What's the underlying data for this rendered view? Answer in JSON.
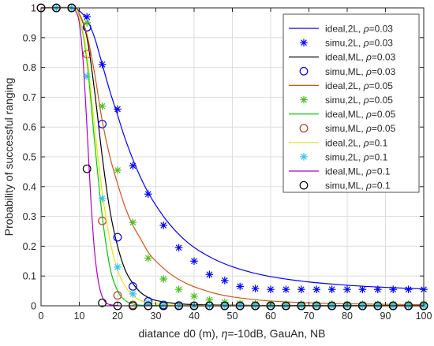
{
  "chart_data": {
    "type": "line",
    "title": "",
    "xlabel_prefix": "diatance d0 (m),   ",
    "xlabel_eta": "η",
    "xlabel_suffix": "=-10dB, GauAn, NB",
    "ylabel": "Probability of successful ranging",
    "xlim": [
      0,
      100
    ],
    "ylim": [
      0,
      1
    ],
    "grid": true,
    "legend_position": "top-right",
    "xticks": [
      0,
      10,
      20,
      30,
      40,
      50,
      60,
      70,
      80,
      90,
      100
    ],
    "yticks": [
      0,
      0.1,
      0.2,
      0.3,
      0.4,
      0.5,
      0.6,
      0.7,
      0.8,
      0.9,
      1
    ],
    "xtick_labels": [
      "0",
      "10",
      "20",
      "30",
      "40",
      "50",
      "60",
      "70",
      "80",
      "90",
      "100"
    ],
    "ytick_labels": [
      "0",
      "0.1",
      "0.2",
      "0.3",
      "0.4",
      "0.5",
      "0.6",
      "0.7",
      "0.8",
      "0.9",
      "1"
    ],
    "series": [
      {
        "name": "ideal,2L, ρ=0.03",
        "label_text": "ideal,2L, ",
        "rho": "0.03",
        "kind": "line",
        "color": "#0000ff",
        "x": [
          0,
          8,
          10,
          12,
          14,
          16,
          18,
          20,
          22,
          25,
          28,
          32,
          36,
          40,
          45,
          50,
          55,
          60,
          65,
          70,
          75,
          80,
          85,
          90,
          95,
          100
        ],
        "y": [
          1,
          1,
          0.99,
          0.96,
          0.9,
          0.81,
          0.72,
          0.64,
          0.56,
          0.46,
          0.38,
          0.3,
          0.24,
          0.196,
          0.158,
          0.131,
          0.112,
          0.098,
          0.088,
          0.08,
          0.074,
          0.069,
          0.065,
          0.062,
          0.059,
          0.057
        ]
      },
      {
        "name": "simu,2L, ρ=0.03",
        "label_text": "simu,2L, ",
        "rho": "0.03",
        "kind": "star",
        "color": "#0000ff",
        "x": [
          12,
          16,
          20,
          24,
          28,
          32,
          36,
          40,
          44,
          48,
          52,
          56,
          60,
          64,
          68,
          72,
          76,
          80,
          84,
          88,
          92,
          96,
          100
        ],
        "y": [
          0.97,
          0.81,
          0.66,
          0.47,
          0.375,
          0.27,
          0.195,
          0.15,
          0.105,
          0.085,
          0.065,
          0.058,
          0.055,
          0.055,
          0.055,
          0.055,
          0.055,
          0.055,
          0.055,
          0.055,
          0.055,
          0.055,
          0.055
        ]
      },
      {
        "name": "ideal,ML, ρ=0.03",
        "label_text": "ideal,ML, ",
        "rho": "0.03",
        "kind": "line",
        "color": "#000000",
        "x": [
          0,
          8,
          10,
          12,
          14,
          16,
          18,
          20,
          22,
          24,
          26,
          28,
          30,
          35,
          40,
          50,
          60,
          80,
          100
        ],
        "y": [
          1,
          1,
          0.98,
          0.9,
          0.72,
          0.5,
          0.32,
          0.2,
          0.12,
          0.075,
          0.045,
          0.028,
          0.018,
          0.008,
          0.004,
          0.002,
          0.001,
          0.001,
          0.001
        ]
      },
      {
        "name": "simu,ML, ρ=0.03",
        "label_text": "simu,ML, ",
        "rho": "0.03",
        "kind": "circle",
        "color": "#0000ff",
        "x": [
          0,
          4,
          8,
          12,
          16,
          20,
          24,
          28,
          32,
          36,
          40,
          44,
          48,
          52,
          56,
          60,
          64,
          68,
          72,
          76,
          80,
          84,
          88,
          92,
          96,
          100
        ],
        "y": [
          1,
          1,
          1,
          0.935,
          0.61,
          0.23,
          0.065,
          0.015,
          0.003,
          0.001,
          0,
          0,
          0,
          0,
          0,
          0,
          0,
          0,
          0,
          0,
          0,
          0,
          0,
          0,
          0,
          0
        ]
      },
      {
        "name": "ideal,2L, ρ=0.05",
        "label_text": "ideal,2L, ",
        "rho": "0.05",
        "kind": "line",
        "color": "#d95319",
        "x": [
          0,
          8,
          10,
          12,
          14,
          16,
          18,
          20,
          22,
          24,
          26,
          28,
          30,
          34,
          38,
          42,
          46,
          50,
          55,
          60,
          70,
          80,
          90,
          100
        ],
        "y": [
          1,
          1,
          0.98,
          0.91,
          0.78,
          0.62,
          0.5,
          0.41,
          0.33,
          0.27,
          0.225,
          0.18,
          0.15,
          0.105,
          0.075,
          0.055,
          0.04,
          0.03,
          0.022,
          0.016,
          0.01,
          0.007,
          0.005,
          0.004
        ]
      },
      {
        "name": "simu,2L, ρ=0.05",
        "label_text": "simu,2L, ",
        "rho": "0.05",
        "kind": "star",
        "color": "#4dbd21",
        "x": [
          4,
          8,
          12,
          16,
          20,
          24,
          28,
          32,
          36,
          40,
          44,
          48,
          52,
          56,
          60,
          64,
          68,
          72,
          76,
          80,
          84,
          88,
          92,
          96,
          100
        ],
        "y": [
          1,
          1,
          0.95,
          0.67,
          0.455,
          0.28,
          0.16,
          0.09,
          0.055,
          0.032,
          0.02,
          0.012,
          0.008,
          0.006,
          0.005,
          0.005,
          0.005,
          0.005,
          0.005,
          0.005,
          0.005,
          0.005,
          0.005,
          0.005,
          0.005
        ]
      },
      {
        "name": "ideal,ML, ρ=0.05",
        "label_text": "ideal,ML, ",
        "rho": "0.05",
        "kind": "line",
        "color": "#00cc00",
        "x": [
          0,
          8,
          10,
          12,
          14,
          16,
          18,
          20,
          22,
          24,
          26,
          30,
          40,
          60,
          100
        ],
        "y": [
          1,
          1,
          0.97,
          0.82,
          0.55,
          0.3,
          0.13,
          0.05,
          0.018,
          0.006,
          0.002,
          0.001,
          0,
          0,
          0
        ]
      },
      {
        "name": "simu,ML, ρ=0.05",
        "label_text": "simu,ML, ",
        "rho": "0.05",
        "kind": "circle",
        "color": "#c0392b",
        "x": [
          0,
          4,
          8,
          12,
          16,
          20,
          24,
          28,
          32,
          36,
          40,
          44,
          48,
          52,
          56,
          60,
          64,
          68,
          72,
          76,
          80,
          84,
          88,
          92,
          96,
          100
        ],
        "y": [
          1,
          1,
          1,
          0.845,
          0.285,
          0.035,
          0.003,
          0,
          0,
          0,
          0,
          0,
          0,
          0,
          0,
          0,
          0,
          0,
          0,
          0,
          0,
          0,
          0,
          0,
          0,
          0
        ]
      },
      {
        "name": "ideal,2L, ρ=0.1",
        "label_text": "ideal,2L, ",
        "rho": "0.1",
        "kind": "line",
        "color": "#e6e600",
        "x": [
          0,
          8,
          10,
          12,
          14,
          16,
          18,
          20,
          22,
          24,
          26,
          28,
          30,
          35,
          40,
          60,
          100
        ],
        "y": [
          1,
          1,
          0.97,
          0.84,
          0.6,
          0.38,
          0.22,
          0.12,
          0.065,
          0.035,
          0.018,
          0.01,
          0.006,
          0.002,
          0.001,
          0,
          0
        ]
      },
      {
        "name": "simu,2L, ρ=0.1",
        "label_text": "simu,2L, ",
        "rho": "0.1",
        "kind": "star",
        "color": "#2ec4f0",
        "x": [
          4,
          8,
          12,
          16,
          20,
          24,
          28,
          32,
          36,
          40,
          44,
          48,
          52,
          56,
          60,
          64,
          68,
          72,
          76,
          80,
          84,
          88,
          92,
          96,
          100
        ],
        "y": [
          1,
          1,
          0.77,
          0.36,
          0.13,
          0.04,
          0.01,
          0.003,
          0,
          0,
          0,
          0,
          0,
          0,
          0,
          0,
          0,
          0,
          0,
          0,
          0,
          0,
          0,
          0,
          0
        ]
      },
      {
        "name": "ideal,ML, ρ=0.1",
        "label_text": "ideal,ML, ",
        "rho": "0.1",
        "kind": "line",
        "color": "#b000c8",
        "x": [
          0,
          8,
          9,
          10,
          11,
          12,
          13,
          14,
          15,
          16,
          17,
          18,
          20,
          25,
          100
        ],
        "y": [
          1,
          1,
          0.99,
          0.95,
          0.82,
          0.6,
          0.36,
          0.18,
          0.08,
          0.03,
          0.01,
          0.004,
          0.001,
          0,
          0
        ]
      },
      {
        "name": "simu,ML, ρ=0.1",
        "label_text": "simu,ML, ",
        "rho": "0.1",
        "kind": "circle",
        "color": "#000000",
        "x": [
          0,
          4,
          8,
          12,
          16,
          20,
          24,
          28,
          32,
          36,
          40,
          44,
          48,
          52,
          56,
          60,
          64,
          68,
          72,
          76,
          80,
          84,
          88,
          92,
          96,
          100
        ],
        "y": [
          1,
          1,
          1,
          0.46,
          0.01,
          0,
          0,
          0,
          0,
          0,
          0,
          0,
          0,
          0,
          0,
          0,
          0,
          0,
          0,
          0,
          0,
          0,
          0,
          0,
          0,
          0
        ]
      }
    ]
  }
}
